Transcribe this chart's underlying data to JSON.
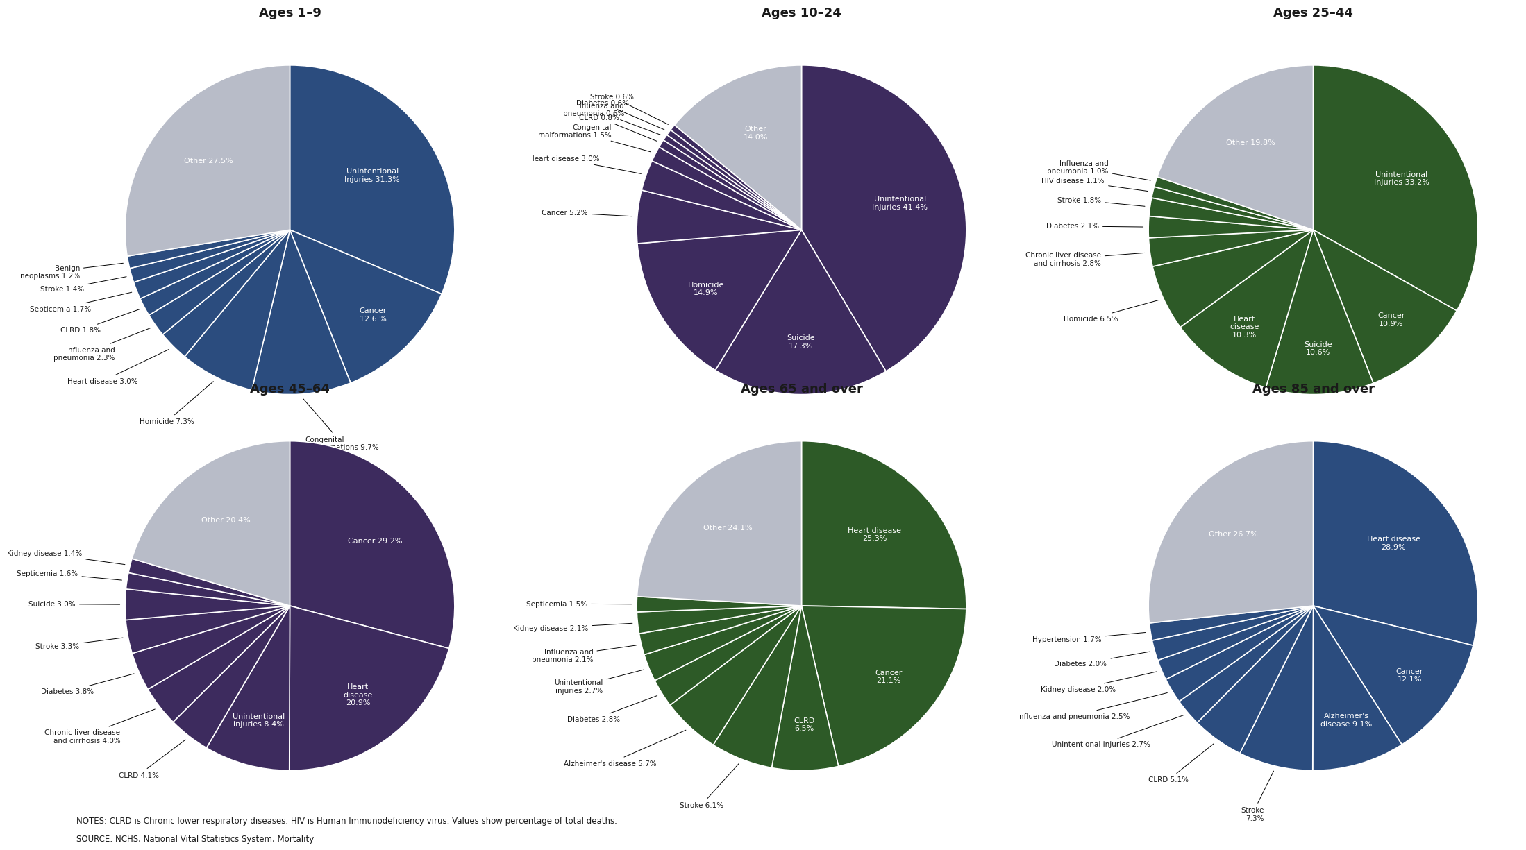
{
  "notes_line1": "NOTES: CLRD is Chronic lower respiratory diseases. HIV is Human Immunodeficiency virus. Values show percentage of total deaths.",
  "notes_line2": "SOURCE: NCHS, National Vital Statistics System, Mortality",
  "charts": [
    {
      "title": "Ages 1–9",
      "values": [
        31.3,
        12.6,
        9.7,
        7.3,
        3.0,
        2.3,
        1.8,
        1.7,
        1.4,
        1.2,
        27.5
      ],
      "main_color": "#2B4C7E",
      "other_color": "#B8BCC8",
      "inside_labels": [
        {
          "text": "Unintentional\nInjuries 31.3%",
          "r": 0.6
        },
        {
          "text": "Cancer\n12.6 %",
          "r": 0.72
        },
        null,
        null,
        null,
        null,
        null,
        null,
        null,
        null,
        {
          "text": "Other 27.5%",
          "r": 0.65
        }
      ],
      "outside_labels": [
        null,
        null,
        {
          "text": "Congenital\nmalformations 9.7%"
        },
        {
          "text": "Homicide 7.3%"
        },
        {
          "text": "Heart disease 3.0%"
        },
        {
          "text": "Influenza and\npneumonia 2.3%"
        },
        {
          "text": "CLRD 1.8%"
        },
        {
          "text": "Septicemia 1.7%"
        },
        {
          "text": "Stroke 1.4%"
        },
        {
          "text": "Benign\nneoplasms 1.2%"
        },
        null
      ],
      "startangle": 90
    },
    {
      "title": "Ages 10–24",
      "values": [
        41.4,
        17.3,
        14.9,
        5.2,
        3.0,
        1.5,
        0.8,
        0.6,
        0.6,
        0.6,
        14.0
      ],
      "main_color": "#3D2B5E",
      "other_color": "#B8BCC8",
      "inside_labels": [
        {
          "text": "Unintentional\nInjuries 41.4%",
          "r": 0.62
        },
        {
          "text": "Suicide\n17.3%",
          "r": 0.68
        },
        {
          "text": "Homicide\n14.9%",
          "r": 0.68
        },
        null,
        null,
        null,
        null,
        null,
        null,
        null,
        {
          "text": "Other\n14.0%",
          "r": 0.65
        }
      ],
      "outside_labels": [
        null,
        null,
        null,
        {
          "text": "Cancer 5.2%"
        },
        {
          "text": "Heart disease 3.0%"
        },
        {
          "text": "Congenital\nmalformations 1.5%"
        },
        {
          "text": "CLRD 0.8%"
        },
        {
          "text": "Influenza and\npneumonia 0.6%"
        },
        {
          "text": "Diabetes 0.6%"
        },
        {
          "text": "Stroke 0.6%"
        },
        null
      ],
      "startangle": 90
    },
    {
      "title": "Ages 25–44",
      "values": [
        33.2,
        10.9,
        10.6,
        10.3,
        6.5,
        2.8,
        2.1,
        1.8,
        1.1,
        1.0,
        19.8
      ],
      "main_color": "#2D5A27",
      "other_color": "#B8BCC8",
      "inside_labels": [
        {
          "text": "Unintentional\nInjuries 33.2%",
          "r": 0.62
        },
        {
          "text": "Cancer\n10.9%",
          "r": 0.72
        },
        {
          "text": "Suicide\n10.6%",
          "r": 0.72
        },
        {
          "text": "Heart\ndisease\n10.3%",
          "r": 0.72
        },
        null,
        null,
        null,
        null,
        null,
        null,
        {
          "text": "Other 19.8%",
          "r": 0.65
        }
      ],
      "outside_labels": [
        null,
        null,
        null,
        null,
        {
          "text": "Homicide 6.5%"
        },
        {
          "text": "Chronic liver disease\nand cirrhosis 2.8%"
        },
        {
          "text": "Diabetes 2.1%"
        },
        {
          "text": "Stroke 1.8%"
        },
        {
          "text": "HIV disease 1.1%"
        },
        {
          "text": "Influenza and\npneumonia 1.0%"
        },
        null
      ],
      "startangle": 90
    },
    {
      "title": "Ages 45–64",
      "values": [
        29.2,
        20.9,
        8.4,
        4.1,
        4.0,
        3.8,
        3.3,
        3.0,
        1.6,
        1.4,
        20.4
      ],
      "main_color": "#3D2B5E",
      "other_color": "#B8BCC8",
      "inside_labels": [
        {
          "text": "Cancer 29.2%",
          "r": 0.65
        },
        {
          "text": "Heart\ndisease\n20.9%",
          "r": 0.68
        },
        {
          "text": "Unintentional\ninjuries 8.4%",
          "r": 0.72
        },
        null,
        null,
        null,
        null,
        null,
        null,
        null,
        {
          "text": "Other 20.4%",
          "r": 0.65
        }
      ],
      "outside_labels": [
        null,
        null,
        null,
        {
          "text": "CLRD 4.1%"
        },
        {
          "text": "Chronic liver disease\nand cirrhosis 4.0%"
        },
        {
          "text": "Diabetes 3.8%"
        },
        {
          "text": "Stroke 3.3%"
        },
        {
          "text": "Suicide 3.0%"
        },
        {
          "text": "Septicemia 1.6%"
        },
        {
          "text": "Kidney disease 1.4%"
        },
        null
      ],
      "startangle": 90
    },
    {
      "title": "Ages 65 and over",
      "values": [
        25.3,
        21.1,
        6.5,
        6.1,
        5.7,
        2.8,
        2.7,
        2.1,
        2.1,
        1.5,
        24.1
      ],
      "main_color": "#2D5A27",
      "other_color": "#B8BCC8",
      "inside_labels": [
        {
          "text": "Heart disease\n25.3%",
          "r": 0.62
        },
        {
          "text": "Cancer\n21.1%",
          "r": 0.68
        },
        {
          "text": "CLRD\n6.5%",
          "r": 0.72
        },
        null,
        null,
        null,
        null,
        null,
        null,
        null,
        {
          "text": "Other 24.1%",
          "r": 0.65
        }
      ],
      "outside_labels": [
        null,
        null,
        null,
        {
          "text": "Stroke 6.1%"
        },
        {
          "text": "Alzheimer's disease 5.7%"
        },
        {
          "text": "Diabetes 2.8%"
        },
        {
          "text": "Unintentional\ninjuries 2.7%"
        },
        {
          "text": "Influenza and\npneumonia 2.1%"
        },
        {
          "text": "Kidney disease 2.1%"
        },
        {
          "text": "Septicemia 1.5%"
        },
        null
      ],
      "startangle": 90
    },
    {
      "title": "Ages 85 and over",
      "values": [
        28.9,
        12.1,
        9.1,
        7.3,
        5.1,
        2.7,
        2.5,
        2.0,
        2.0,
        1.7,
        26.7
      ],
      "main_color": "#2B4C7E",
      "other_color": "#B8BCC8",
      "inside_labels": [
        {
          "text": "Heart disease\n28.9%",
          "r": 0.62
        },
        {
          "text": "Cancer\n12.1%",
          "r": 0.72
        },
        {
          "text": "Alzheimer's\ndisease 9.1%",
          "r": 0.72
        },
        null,
        null,
        null,
        null,
        null,
        null,
        null,
        {
          "text": "Other 26.7%",
          "r": 0.65
        }
      ],
      "outside_labels": [
        null,
        null,
        null,
        {
          "text": "Stroke\n7.3%"
        },
        {
          "text": "CLRD 5.1%"
        },
        {
          "text": "Unintentional injuries 2.7%"
        },
        {
          "text": "Influenza and pneumonia 2.5%"
        },
        {
          "text": "Kidney disease 2.0%"
        },
        {
          "text": "Diabetes 2.0%"
        },
        {
          "text": "Hypertension 1.7%"
        },
        null
      ],
      "startangle": 90
    }
  ],
  "bg_color": "#FFFFFF",
  "text_color": "#1A1A1A",
  "inside_text_color": "#FFFFFF",
  "outside_text_color": "#1A1A1A"
}
